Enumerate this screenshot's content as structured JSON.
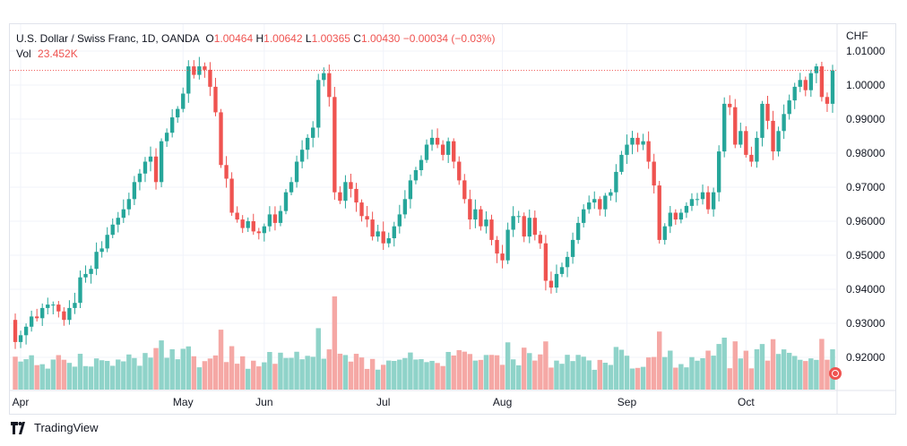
{
  "header": {
    "symbol": "U.S. Dollar / Swiss Franc, 1D, OANDA",
    "o_label": "O",
    "o_value": "1.00464",
    "h_label": "H",
    "h_value": "1.00642",
    "l_label": "L",
    "l_value": "1.00365",
    "c_label": "C",
    "c_value": "1.00430",
    "change": "−0.00034 (−0.03%)",
    "vol_label": "Vol",
    "vol_value": "23.452K"
  },
  "footer": {
    "brand": "TradingView"
  },
  "colors": {
    "up": "#26a69a",
    "down": "#ef5350",
    "vol_up": "#8fd3c9",
    "vol_down": "#f5a8a5",
    "grid": "#f0f3fa",
    "axis_text": "#131722",
    "price_line": "#ef5350"
  },
  "chart_data": {
    "type": "candlestick",
    "currency_label": "CHF",
    "y_ticks": [
      "1.01000",
      "1.00000",
      "0.99000",
      "0.98000",
      "0.97000",
      "0.96000",
      "0.95000",
      "0.94000",
      "0.93000",
      "0.92000"
    ],
    "x_ticks": [
      "Apr",
      "May",
      "Jun",
      "Jul",
      "Aug",
      "Sep",
      "Oct"
    ],
    "last_close": 1.0043,
    "closes": [
      0.9245,
      0.9265,
      0.929,
      0.932,
      0.9315,
      0.9345,
      0.9355,
      0.9355,
      0.9335,
      0.931,
      0.9345,
      0.936,
      0.9435,
      0.9445,
      0.946,
      0.951,
      0.952,
      0.956,
      0.959,
      0.961,
      0.9635,
      0.9665,
      0.9715,
      0.974,
      0.9775,
      0.979,
      0.9715,
      0.9835,
      0.986,
      0.9905,
      0.993,
      0.9975,
      1.0055,
      1.003,
      1.0055,
      1.0045,
      0.9995,
      0.992,
      0.9765,
      0.9725,
      0.9625,
      0.9605,
      0.958,
      0.96,
      0.957,
      0.9565,
      0.9585,
      0.962,
      0.9595,
      0.963,
      0.9685,
      0.9715,
      0.9775,
      0.981,
      0.9845,
      0.9875,
      1.0015,
      1.0035,
      0.9965,
      0.9685,
      0.966,
      0.9715,
      0.9695,
      0.9655,
      0.9615,
      0.9605,
      0.9555,
      0.957,
      0.9535,
      0.955,
      0.9585,
      0.962,
      0.9665,
      0.972,
      0.975,
      0.978,
      0.9825,
      0.9845,
      0.9825,
      0.9795,
      0.9835,
      0.9775,
      0.972,
      0.9665,
      0.9605,
      0.9635,
      0.9585,
      0.9605,
      0.9545,
      0.9505,
      0.9485,
      0.9575,
      0.9615,
      0.9615,
      0.9555,
      0.961,
      0.956,
      0.9535,
      0.9425,
      0.9405,
      0.9445,
      0.9465,
      0.9495,
      0.9545,
      0.9595,
      0.9635,
      0.9655,
      0.9665,
      0.9635,
      0.9675,
      0.9685,
      0.9745,
      0.9795,
      0.9825,
      0.9845,
      0.9825,
      0.9835,
      0.9775,
      0.9705,
      0.9545,
      0.9585,
      0.9625,
      0.9605,
      0.9625,
      0.9645,
      0.9665,
      0.9665,
      0.9685,
      0.9635,
      0.9685,
      0.9805,
      0.9945,
      0.9935,
      0.9825,
      0.9865,
      0.9795,
      0.9775,
      0.9845,
      0.9945,
      0.9895,
      0.9805,
      0.9865,
      0.9915,
      0.9955,
      0.9995,
      1.0015,
      0.9985,
      1.0035,
      1.0055,
      0.9965,
      0.9945,
      1.0043
    ]
  }
}
